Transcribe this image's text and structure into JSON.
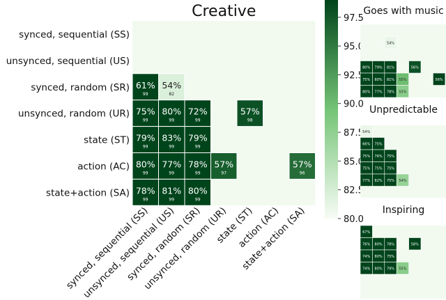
{
  "chart_data": [
    {
      "type": "heatmap",
      "title": "Creative",
      "rows": [
        "synced, sequential (SS)",
        "unsynced, sequential (US)",
        "synced, random (SR)",
        "unsynced, random (UR)",
        "state (ST)",
        "action (AC)",
        "state+action (SA)"
      ],
      "columns": [
        "synced, sequential (SS)",
        "unsynced, sequential (US)",
        "synced, random (SR)",
        "unsynced, random (UR)",
        "state (ST)",
        "action (AC)",
        "state+action (SA)"
      ],
      "cells": [
        {
          "row": 2,
          "col": 0,
          "value": 99,
          "label": "61%",
          "sub": "99"
        },
        {
          "row": 2,
          "col": 1,
          "value": 82,
          "label": "54%",
          "sub": "82"
        },
        {
          "row": 3,
          "col": 0,
          "value": 99,
          "label": "75%",
          "sub": "99"
        },
        {
          "row": 3,
          "col": 1,
          "value": 99,
          "label": "80%",
          "sub": "99"
        },
        {
          "row": 3,
          "col": 2,
          "value": 99,
          "label": "72%",
          "sub": "99"
        },
        {
          "row": 3,
          "col": 4,
          "value": 98,
          "label": "57%",
          "sub": "98"
        },
        {
          "row": 4,
          "col": 0,
          "value": 99,
          "label": "79%",
          "sub": "99"
        },
        {
          "row": 4,
          "col": 1,
          "value": 99,
          "label": "83%",
          "sub": "99"
        },
        {
          "row": 4,
          "col": 2,
          "value": 99,
          "label": "79%",
          "sub": "99"
        },
        {
          "row": 5,
          "col": 0,
          "value": 99,
          "label": "80%",
          "sub": "99"
        },
        {
          "row": 5,
          "col": 1,
          "value": 99,
          "label": "77%",
          "sub": "99"
        },
        {
          "row": 5,
          "col": 2,
          "value": 99,
          "label": "78%",
          "sub": "99"
        },
        {
          "row": 5,
          "col": 3,
          "value": 97,
          "label": "57%",
          "sub": "97"
        },
        {
          "row": 5,
          "col": 6,
          "value": 96,
          "label": "57%",
          "sub": "96"
        },
        {
          "row": 6,
          "col": 0,
          "value": 99,
          "label": "78%",
          "sub": "99"
        },
        {
          "row": 6,
          "col": 1,
          "value": 99,
          "label": "81%",
          "sub": "99"
        },
        {
          "row": 6,
          "col": 2,
          "value": 99,
          "label": "80%",
          "sub": "99"
        }
      ]
    },
    {
      "type": "heatmap",
      "title": "Goes with music",
      "cells": [
        {
          "row": 1,
          "col": 2,
          "value": 81,
          "label": "54%"
        },
        {
          "row": 3,
          "col": 0,
          "value": 99,
          "label": "80%"
        },
        {
          "row": 3,
          "col": 1,
          "value": 99,
          "label": "79%"
        },
        {
          "row": 3,
          "col": 2,
          "value": 99,
          "label": "81%"
        },
        {
          "row": 3,
          "col": 4,
          "value": 98,
          "label": "56%"
        },
        {
          "row": 4,
          "col": 0,
          "value": 99,
          "label": "75%"
        },
        {
          "row": 4,
          "col": 1,
          "value": 99,
          "label": "80%"
        },
        {
          "row": 4,
          "col": 2,
          "value": 99,
          "label": "81%"
        },
        {
          "row": 4,
          "col": 3,
          "value": 90,
          "label": "55%"
        },
        {
          "row": 4,
          "col": 6,
          "value": 99,
          "label": "56%"
        },
        {
          "row": 5,
          "col": 0,
          "value": 99,
          "label": "80%"
        },
        {
          "row": 5,
          "col": 1,
          "value": 99,
          "label": "77%"
        },
        {
          "row": 5,
          "col": 2,
          "value": 99,
          "label": "78%"
        },
        {
          "row": 5,
          "col": 3,
          "value": 88,
          "label": "55%"
        }
      ]
    },
    {
      "type": "heatmap",
      "title": "Unpredictable",
      "cells": [
        {
          "row": 0,
          "col": 0,
          "value": 81,
          "label": "54%"
        },
        {
          "row": 1,
          "col": 0,
          "value": 99,
          "label": "66%"
        },
        {
          "row": 1,
          "col": 1,
          "value": 99,
          "label": "75%"
        },
        {
          "row": 2,
          "col": 0,
          "value": 99,
          "label": "75%"
        },
        {
          "row": 2,
          "col": 1,
          "value": 99,
          "label": "76%"
        },
        {
          "row": 2,
          "col": 2,
          "value": 99,
          "label": "75%"
        },
        {
          "row": 3,
          "col": 0,
          "value": 99,
          "label": "75%"
        },
        {
          "row": 3,
          "col": 1,
          "value": 99,
          "label": "75%"
        },
        {
          "row": 3,
          "col": 2,
          "value": 99,
          "label": "75%"
        },
        {
          "row": 4,
          "col": 0,
          "value": 99,
          "label": "77%"
        },
        {
          "row": 4,
          "col": 1,
          "value": 99,
          "label": "82%"
        },
        {
          "row": 4,
          "col": 2,
          "value": 99,
          "label": "75%"
        },
        {
          "row": 4,
          "col": 3,
          "value": 87,
          "label": "54%"
        }
      ]
    },
    {
      "type": "heatmap",
      "title": "Inspiring",
      "cells": [
        {
          "row": 0,
          "col": 0,
          "value": 99,
          "label": "67%"
        },
        {
          "row": 1,
          "col": 0,
          "value": 99,
          "label": "76%"
        },
        {
          "row": 1,
          "col": 1,
          "value": 99,
          "label": "80%"
        },
        {
          "row": 1,
          "col": 2,
          "value": 99,
          "label": "78%"
        },
        {
          "row": 1,
          "col": 4,
          "value": 99,
          "label": "58%"
        },
        {
          "row": 2,
          "col": 0,
          "value": 99,
          "label": "74%"
        },
        {
          "row": 2,
          "col": 1,
          "value": 99,
          "label": "80%"
        },
        {
          "row": 2,
          "col": 2,
          "value": 99,
          "label": "75%"
        },
        {
          "row": 2,
          "col": 7,
          "value": 99,
          "label": "59%"
        },
        {
          "row": 3,
          "col": 0,
          "value": 99,
          "label": "74%"
        },
        {
          "row": 3,
          "col": 1,
          "value": 99,
          "label": "80%"
        },
        {
          "row": 3,
          "col": 2,
          "value": 99,
          "label": "79%"
        },
        {
          "row": 3,
          "col": 3,
          "value": 88,
          "label": "55%"
        }
      ]
    }
  ],
  "colorbar": {
    "min": 80.0,
    "max": 99.0,
    "ticks": [
      "97.5",
      "95.0",
      "92.5",
      "90.0",
      "87.5",
      "85.0",
      "82.5",
      "80.0"
    ],
    "colors": {
      "low": "#f7fcf5",
      "mid": "#74c476",
      "high": "#00441b",
      "empty": "#f2faf0",
      "grid": "#ffffff"
    }
  }
}
